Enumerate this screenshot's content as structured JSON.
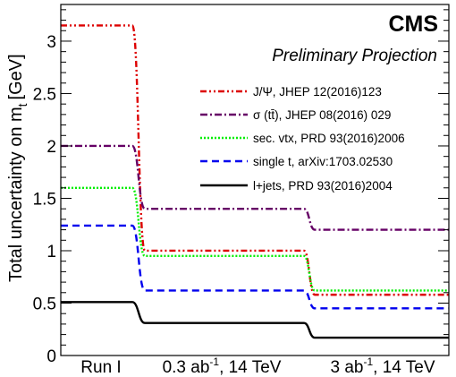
{
  "chart_data": {
    "type": "line",
    "brand": "CMS",
    "subtitle": "Preliminary Projection",
    "ylabel": "Total uncertainty on m",
    "ylabel_sub": "t",
    "ylabel_unit": "[GeV]",
    "ylim": [
      0,
      3.35
    ],
    "yticks": [
      0,
      0.5,
      1,
      1.5,
      2,
      2.5,
      3
    ],
    "ytick_labels": [
      "0",
      "0.5",
      "1",
      "1.5",
      "2",
      "2.5",
      "3"
    ],
    "categories": [
      "Run I",
      "0.3 ab⁻¹, 14 TeV",
      "3 ab⁻¹, 14 TeV"
    ],
    "category_labels": [
      {
        "text": "Run I",
        "sup": "",
        "rest": ""
      },
      {
        "text": "0.3 ab",
        "sup": "-1",
        "rest": ", 14 TeV"
      },
      {
        "text": "3 ab",
        "sup": "-1",
        "rest": ", 14 TeV"
      }
    ],
    "grid": false,
    "legend_position": "top-right",
    "series": [
      {
        "name": "J/Ψ, JHEP 12(2016)123",
        "values": [
          3.15,
          1.0,
          0.58
        ],
        "color": "#dd0000",
        "dash": "7,3,2,3,2,3"
      },
      {
        "name": "σ (tt̄), JHEP 08(2016) 029",
        "values": [
          2.0,
          1.4,
          1.2
        ],
        "color": "#660066",
        "dash": "8,3,2,3"
      },
      {
        "name": "sec. vtx, PRD 93(2016)2006",
        "values": [
          1.6,
          0.95,
          0.62
        ],
        "color": "#00ee00",
        "dash": "2,2"
      },
      {
        "name": "single t, arXiv:1703.02530",
        "values": [
          1.24,
          0.62,
          0.45
        ],
        "color": "#0000ee",
        "dash": "8,5"
      },
      {
        "name": "l+jets, PRD 93(2016)2004",
        "values": [
          0.51,
          0.31,
          0.17
        ],
        "color": "#000000",
        "dash": ""
      }
    ]
  }
}
